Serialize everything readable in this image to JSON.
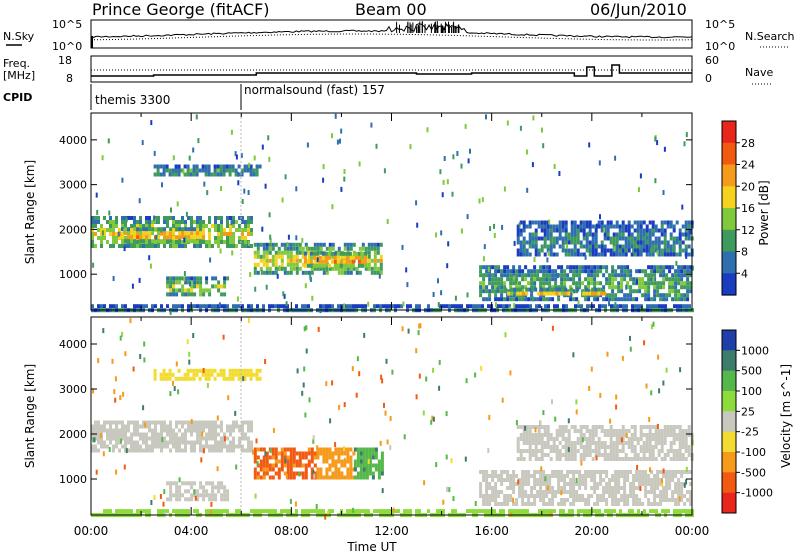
{
  "header": {
    "station": "Prince George (fitACF)",
    "beam": "Beam 00",
    "date": "06/Jun/2010"
  },
  "panels": {
    "noise": {
      "left_label": "N.Sky",
      "right_label": "N.Search",
      "left_ticks": [
        "10^5",
        "10^0"
      ],
      "right_ticks": [
        "10^5",
        "10^0"
      ]
    },
    "freq": {
      "left_label_1": "Freq.",
      "left_label_2": "[MHz]",
      "right_label": "Nave",
      "left_ticks": [
        "18",
        "8"
      ],
      "right_ticks": [
        "60",
        "0"
      ]
    },
    "cpid": {
      "label": "CPID",
      "modes": [
        {
          "name": "themis 3300",
          "start_hour": 0
        },
        {
          "name": "normalsound (fast) 157",
          "start_hour": 6
        }
      ]
    }
  },
  "colorbars": {
    "power": {
      "label": "Power [dB]",
      "ticks": [
        "28",
        "24",
        "20",
        "16",
        "12",
        "8",
        "4"
      ],
      "colors": [
        "#e8261b",
        "#f25a12",
        "#f59a1a",
        "#f5d21e",
        "#80c83c",
        "#3f9a5e",
        "#2f6fb0",
        "#1a3cc0"
      ]
    },
    "velocity": {
      "label": "Velocity [m s^-1]",
      "ticks": [
        "1000",
        "500",
        "100",
        "25",
        "-25",
        "-100",
        "-500",
        "-1000"
      ],
      "colors": [
        "#1f3fa8",
        "#3d7c6c",
        "#56b84a",
        "#8edb3d",
        "#c8c8be",
        "#f2dc32",
        "#f59a1a",
        "#f25a12",
        "#e8261b"
      ]
    }
  },
  "chart_data": [
    {
      "type": "heatmap",
      "title": "Power",
      "ylabel": "Slant Range [km]",
      "xlabel": "Time UT",
      "x_ticks": [
        "00:00",
        "04:00",
        "08:00",
        "12:00",
        "16:00",
        "20:00",
        "00:00"
      ],
      "y_ticks": [
        1000,
        2000,
        3000,
        4000
      ],
      "xlim": [
        0,
        24
      ],
      "ylim": [
        200,
        4600
      ],
      "value_label": "Power [dB]",
      "value_range": [
        0,
        30
      ],
      "regions": [
        {
          "t": [
            0.0,
            6.4
          ],
          "r": [
            1600,
            2300
          ],
          "v": 16
        },
        {
          "t": [
            1.2,
            4.5
          ],
          "r": [
            1750,
            2050
          ],
          "v": 22
        },
        {
          "t": [
            3.0,
            5.5
          ],
          "r": [
            550,
            950
          ],
          "v": 14
        },
        {
          "t": [
            2.5,
            6.8
          ],
          "r": [
            3200,
            3450
          ],
          "v": 8
        },
        {
          "t": [
            6.5,
            11.6
          ],
          "r": [
            1000,
            1700
          ],
          "v": 16
        },
        {
          "t": [
            8.5,
            11.0
          ],
          "r": [
            1200,
            1500
          ],
          "v": 24
        },
        {
          "t": [
            15.5,
            24.0
          ],
          "r": [
            400,
            1200
          ],
          "v": 10
        },
        {
          "t": [
            16.5,
            20.5
          ],
          "r": [
            550,
            700
          ],
          "v": 20
        },
        {
          "t": [
            17.0,
            24.0
          ],
          "r": [
            1400,
            2200
          ],
          "v": 6
        },
        {
          "t": [
            0.0,
            24.0
          ],
          "r": [
            200,
            330
          ],
          "v": 6
        }
      ]
    },
    {
      "type": "heatmap",
      "title": "Velocity",
      "ylabel": "Slant Range [km]",
      "xlabel": "Time UT",
      "x_ticks": [
        "00:00",
        "04:00",
        "08:00",
        "12:00",
        "16:00",
        "20:00",
        "00:00"
      ],
      "y_ticks": [
        1000,
        2000,
        3000,
        4000
      ],
      "xlim": [
        0,
        24
      ],
      "ylim": [
        200,
        4600
      ],
      "value_label": "Velocity [m s^-1]",
      "value_range": [
        -1000,
        1000
      ],
      "regions": [
        {
          "t": [
            0.0,
            6.4
          ],
          "r": [
            1600,
            2300
          ],
          "v": 0
        },
        {
          "t": [
            3.0,
            5.5
          ],
          "r": [
            550,
            950
          ],
          "v": 0
        },
        {
          "t": [
            2.5,
            6.8
          ],
          "r": [
            3200,
            3450
          ],
          "v": -50
        },
        {
          "t": [
            6.5,
            9.0
          ],
          "r": [
            1000,
            1700
          ],
          "v": -600
        },
        {
          "t": [
            9.0,
            10.5
          ],
          "r": [
            1000,
            1700
          ],
          "v": -150
        },
        {
          "t": [
            10.5,
            11.6
          ],
          "r": [
            1000,
            1700
          ],
          "v": 400
        },
        {
          "t": [
            15.5,
            24.0
          ],
          "r": [
            400,
            1200
          ],
          "v": 0
        },
        {
          "t": [
            17.0,
            24.0
          ],
          "r": [
            1400,
            2200
          ],
          "v": 0
        },
        {
          "t": [
            0.0,
            24.0
          ],
          "r": [
            200,
            330
          ],
          "v": 60
        }
      ]
    }
  ]
}
